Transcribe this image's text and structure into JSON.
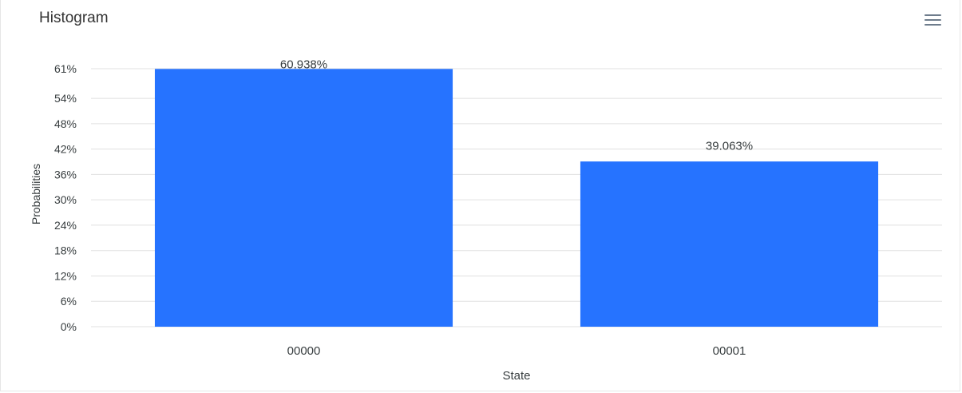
{
  "card": {
    "title": "Histogram"
  },
  "toolbar": {
    "menu_icon": "hamburger-menu-icon"
  },
  "chart_data": {
    "type": "bar",
    "title": "Histogram",
    "xlabel": "State",
    "ylabel": "Probabilities",
    "categories": [
      "00000",
      "00001"
    ],
    "values": [
      60.938,
      39.063
    ],
    "data_labels": [
      "60.938%",
      "39.063%"
    ],
    "ylim": [
      0,
      61
    ],
    "yticks": [
      0,
      6,
      12,
      18,
      24,
      30,
      36,
      42,
      48,
      54,
      61
    ],
    "ytick_labels": [
      "0%",
      "6%",
      "12%",
      "18%",
      "24%",
      "30%",
      "36%",
      "42%",
      "48%",
      "54%",
      "61%"
    ],
    "grid": true,
    "legend": "none",
    "bar_color": "#2673ff",
    "grid_color": "#e0e0e0"
  }
}
